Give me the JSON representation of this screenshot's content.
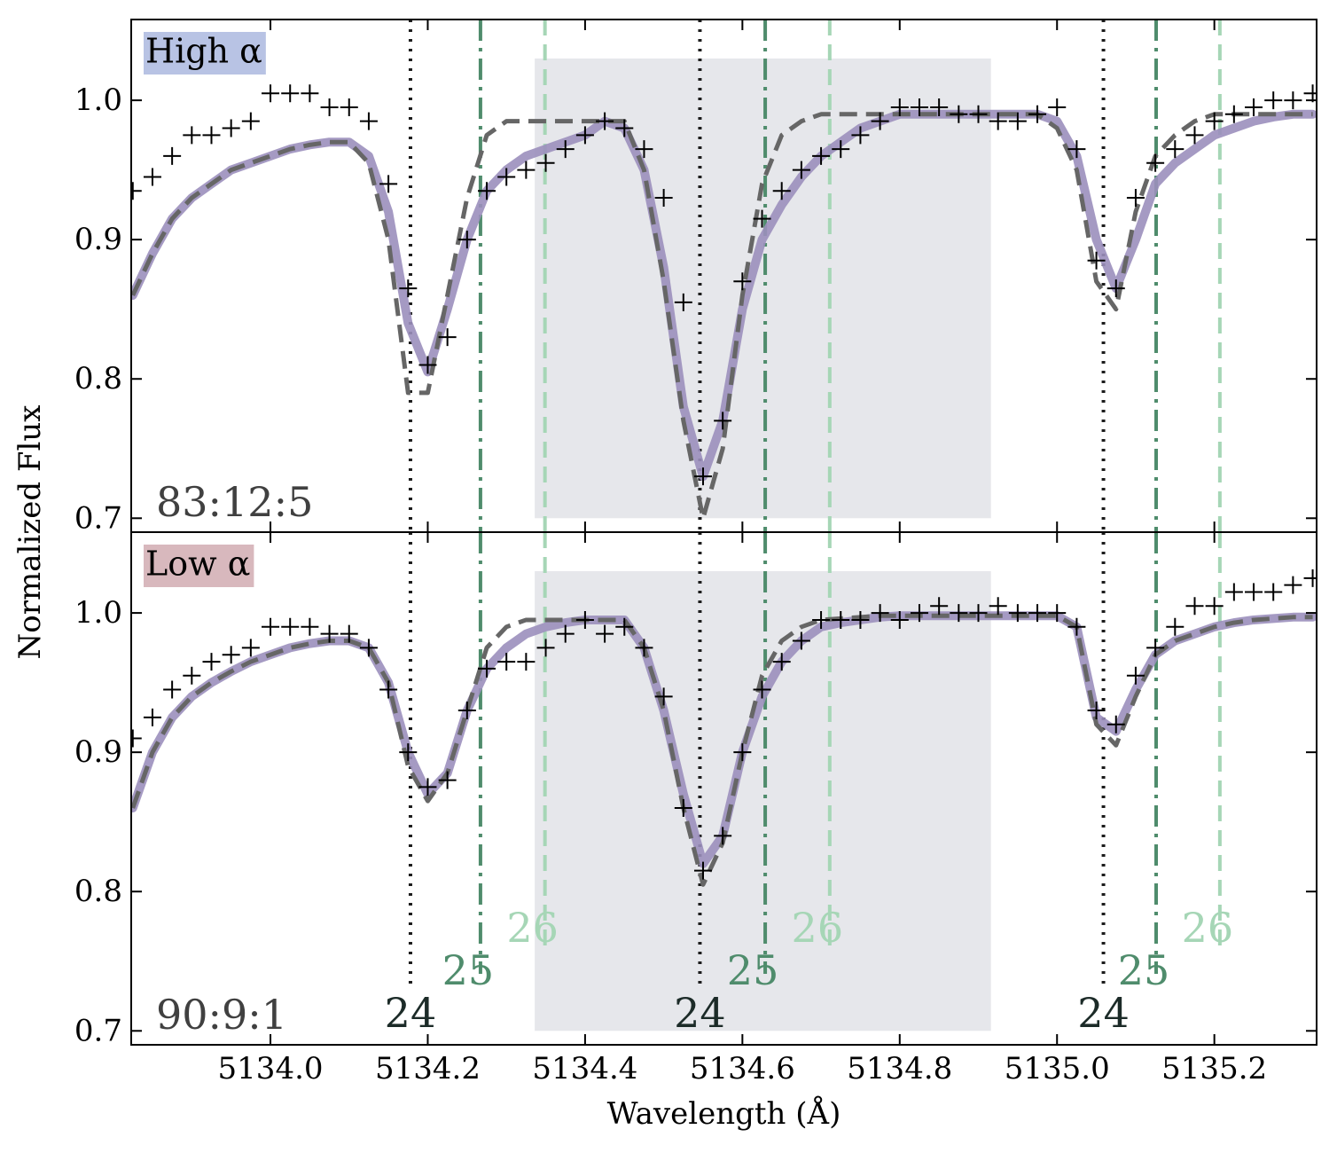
{
  "chart_data": [
    {
      "type": "line",
      "label": "High α",
      "label_color": "#b8c3e4",
      "annotation": "83:12:5",
      "xlim": [
        5133.823,
        5135.33
      ],
      "xticks": [
        {
          "value": 5134,
          "label": "5134.0"
        },
        5134.2,
        5134.4,
        5134.6,
        5134.8,
        {
          "value": 5135,
          "label": "5135.0"
        },
        5135.2
      ],
      "ylim": [
        0.69,
        1.058
      ],
      "yticks": [
        0.7,
        0.8,
        0.9,
        {
          "value": 1,
          "label": "1.0"
        }
      ],
      "span": {
        "x": [
          5134.336,
          5134.916
        ],
        "y": [
          0.7,
          1.03
        ],
        "color": "#e6e7eb"
      },
      "vlines": [
        {
          "style": "dotted",
          "color": "#1c1c1c",
          "x": [
            5134.178,
            5134.546,
            5135.059
          ]
        },
        {
          "style": "dashdot",
          "color": "#4f8c6c",
          "x": [
            5134.267,
            5134.629,
            5135.126
          ]
        },
        {
          "style": "dashed",
          "color": "#a6d6b6",
          "x": [
            5134.349,
            5134.711,
            5135.207
          ]
        }
      ],
      "x": [
        5133.825,
        5133.85,
        5133.875,
        5133.9,
        5133.925,
        5133.95,
        5133.975,
        5134.0,
        5134.025,
        5134.05,
        5134.075,
        5134.1,
        5134.125,
        5134.15,
        5134.175,
        5134.2,
        5134.225,
        5134.25,
        5134.275,
        5134.3,
        5134.325,
        5134.35,
        5134.375,
        5134.4,
        5134.425,
        5134.45,
        5134.475,
        5134.5,
        5134.525,
        5134.55,
        5134.575,
        5134.6,
        5134.625,
        5134.65,
        5134.675,
        5134.7,
        5134.725,
        5134.75,
        5134.775,
        5134.8,
        5134.825,
        5134.85,
        5134.875,
        5134.9,
        5134.925,
        5134.95,
        5134.975,
        5135.0,
        5135.025,
        5135.05,
        5135.075,
        5135.1,
        5135.125,
        5135.15,
        5135.175,
        5135.2,
        5135.225,
        5135.25,
        5135.275,
        5135.3,
        5135.325
      ],
      "series": [
        {
          "style": "band",
          "color": "#9b8fbd",
          "values": [
            0.86,
            0.89,
            0.915,
            0.93,
            0.94,
            0.95,
            0.955,
            0.96,
            0.965,
            0.968,
            0.97,
            0.97,
            0.96,
            0.92,
            0.84,
            0.805,
            0.85,
            0.9,
            0.935,
            0.95,
            0.96,
            0.965,
            0.97,
            0.975,
            0.985,
            0.98,
            0.95,
            0.88,
            0.78,
            0.73,
            0.77,
            0.85,
            0.9,
            0.925,
            0.945,
            0.96,
            0.97,
            0.98,
            0.985,
            0.99,
            0.99,
            0.99,
            0.99,
            0.99,
            0.99,
            0.99,
            0.99,
            0.985,
            0.96,
            0.9,
            0.865,
            0.9,
            0.94,
            0.955,
            0.965,
            0.975,
            0.98,
            0.985,
            0.988,
            0.99,
            0.99
          ]
        },
        {
          "style": "dashed",
          "color": "#666666",
          "values": [
            0.86,
            0.89,
            0.915,
            0.93,
            0.94,
            0.95,
            0.955,
            0.96,
            0.965,
            0.968,
            0.97,
            0.97,
            0.955,
            0.9,
            0.79,
            0.79,
            0.86,
            0.93,
            0.975,
            0.985,
            0.985,
            0.985,
            0.985,
            0.985,
            0.985,
            0.985,
            0.95,
            0.87,
            0.77,
            0.7,
            0.75,
            0.86,
            0.94,
            0.975,
            0.985,
            0.99,
            0.99,
            0.99,
            0.99,
            0.99,
            0.99,
            0.99,
            0.99,
            0.99,
            0.99,
            0.99,
            0.99,
            0.98,
            0.95,
            0.87,
            0.85,
            0.92,
            0.96,
            0.975,
            0.985,
            0.99,
            0.99,
            0.99,
            0.99,
            0.99,
            0.99
          ]
        },
        {
          "style": "markers",
          "color": "#000000",
          "values": [
            0.935,
            0.945,
            0.96,
            0.975,
            0.975,
            0.98,
            0.985,
            1.005,
            1.005,
            1.005,
            0.995,
            0.995,
            0.985,
            0.94,
            0.865,
            0.81,
            0.83,
            0.9,
            0.935,
            0.945,
            0.95,
            0.955,
            0.965,
            0.975,
            0.985,
            0.98,
            0.965,
            0.93,
            0.855,
            0.73,
            0.77,
            0.87,
            0.915,
            0.935,
            0.95,
            0.96,
            0.965,
            0.975,
            0.985,
            0.995,
            0.995,
            0.995,
            0.99,
            0.99,
            0.985,
            0.985,
            0.99,
            0.995,
            0.965,
            0.885,
            0.865,
            0.93,
            0.955,
            0.965,
            0.975,
            0.985,
            0.99,
            0.995,
            1.0,
            1.0,
            1.005
          ]
        }
      ]
    },
    {
      "type": "line",
      "label": "Low α",
      "label_color": "#d8b8bd",
      "annotation": "90:9:1",
      "xlabel": "Wavelength (Å)",
      "ylabel": "Normalized Flux",
      "xlim": [
        5133.823,
        5135.33
      ],
      "xticks": [
        {
          "value": 5134,
          "label": "5134.0"
        },
        5134.2,
        5134.4,
        5134.6,
        5134.8,
        {
          "value": 5135,
          "label": "5135.0"
        },
        5135.2
      ],
      "ylim": [
        0.69,
        1.058
      ],
      "yticks": [
        0.7,
        0.8,
        0.9,
        {
          "value": 1,
          "label": "1.0"
        }
      ],
      "span": {
        "x": [
          5134.336,
          5134.916
        ],
        "y": [
          0.7,
          1.03
        ],
        "color": "#e6e7eb"
      },
      "vlines": [
        {
          "label": "24",
          "style": "dotted",
          "color": "#1c1c1c",
          "x": [
            5134.178,
            5134.546,
            5135.059
          ]
        },
        {
          "label": "25",
          "style": "dashdot",
          "color": "#4f8c6c",
          "x": [
            5134.267,
            5134.629,
            5135.126
          ]
        },
        {
          "label": "26",
          "style": "dashed",
          "color": "#a6d6b6",
          "x": [
            5134.349,
            5134.711,
            5135.207
          ]
        }
      ],
      "x": [
        5133.825,
        5133.85,
        5133.875,
        5133.9,
        5133.925,
        5133.95,
        5133.975,
        5134.0,
        5134.025,
        5134.05,
        5134.075,
        5134.1,
        5134.125,
        5134.15,
        5134.175,
        5134.2,
        5134.225,
        5134.25,
        5134.275,
        5134.3,
        5134.325,
        5134.35,
        5134.375,
        5134.4,
        5134.425,
        5134.45,
        5134.475,
        5134.5,
        5134.525,
        5134.55,
        5134.575,
        5134.6,
        5134.625,
        5134.65,
        5134.675,
        5134.7,
        5134.725,
        5134.75,
        5134.775,
        5134.8,
        5134.825,
        5134.85,
        5134.875,
        5134.9,
        5134.925,
        5134.95,
        5134.975,
        5135.0,
        5135.025,
        5135.05,
        5135.075,
        5135.1,
        5135.125,
        5135.15,
        5135.175,
        5135.2,
        5135.225,
        5135.25,
        5135.275,
        5135.3,
        5135.325
      ],
      "series": [
        {
          "style": "band",
          "color": "#9b8fbd",
          "values": [
            0.86,
            0.9,
            0.925,
            0.94,
            0.95,
            0.958,
            0.965,
            0.97,
            0.975,
            0.978,
            0.98,
            0.98,
            0.975,
            0.95,
            0.9,
            0.87,
            0.885,
            0.93,
            0.96,
            0.975,
            0.985,
            0.99,
            0.993,
            0.995,
            0.995,
            0.995,
            0.975,
            0.93,
            0.87,
            0.82,
            0.84,
            0.9,
            0.94,
            0.965,
            0.98,
            0.99,
            0.993,
            0.995,
            0.997,
            0.998,
            0.998,
            0.998,
            0.998,
            0.998,
            0.998,
            0.998,
            0.998,
            0.998,
            0.99,
            0.925,
            0.915,
            0.945,
            0.97,
            0.98,
            0.985,
            0.99,
            0.993,
            0.995,
            0.996,
            0.997,
            0.997
          ]
        },
        {
          "style": "dashed",
          "color": "#666666",
          "values": [
            0.86,
            0.9,
            0.925,
            0.94,
            0.95,
            0.958,
            0.965,
            0.97,
            0.975,
            0.978,
            0.98,
            0.98,
            0.975,
            0.95,
            0.89,
            0.865,
            0.885,
            0.93,
            0.975,
            0.99,
            0.995,
            0.995,
            0.995,
            0.995,
            0.995,
            0.995,
            0.975,
            0.93,
            0.86,
            0.805,
            0.835,
            0.9,
            0.955,
            0.98,
            0.99,
            0.995,
            0.996,
            0.997,
            0.998,
            0.998,
            0.998,
            0.998,
            0.998,
            0.998,
            0.998,
            0.998,
            0.998,
            0.998,
            0.99,
            0.92,
            0.905,
            0.94,
            0.97,
            0.98,
            0.985,
            0.99,
            0.993,
            0.995,
            0.996,
            0.997,
            0.997
          ]
        },
        {
          "style": "markers",
          "color": "#000000",
          "values": [
            0.91,
            0.925,
            0.945,
            0.955,
            0.965,
            0.97,
            0.975,
            0.99,
            0.99,
            0.99,
            0.985,
            0.985,
            0.975,
            0.945,
            0.9,
            0.875,
            0.88,
            0.93,
            0.96,
            0.965,
            0.965,
            0.975,
            0.985,
            0.995,
            0.985,
            0.99,
            0.975,
            0.94,
            0.86,
            0.815,
            0.84,
            0.9,
            0.945,
            0.965,
            0.98,
            0.995,
            0.995,
            0.995,
            1.0,
            0.995,
            1.0,
            1.005,
            1.0,
            1.0,
            1.005,
            1.0,
            1.0,
            1.0,
            0.99,
            0.93,
            0.92,
            0.955,
            0.975,
            0.99,
            1.005,
            1.005,
            1.015,
            1.015,
            1.015,
            1.02,
            1.025
          ]
        }
      ]
    }
  ]
}
